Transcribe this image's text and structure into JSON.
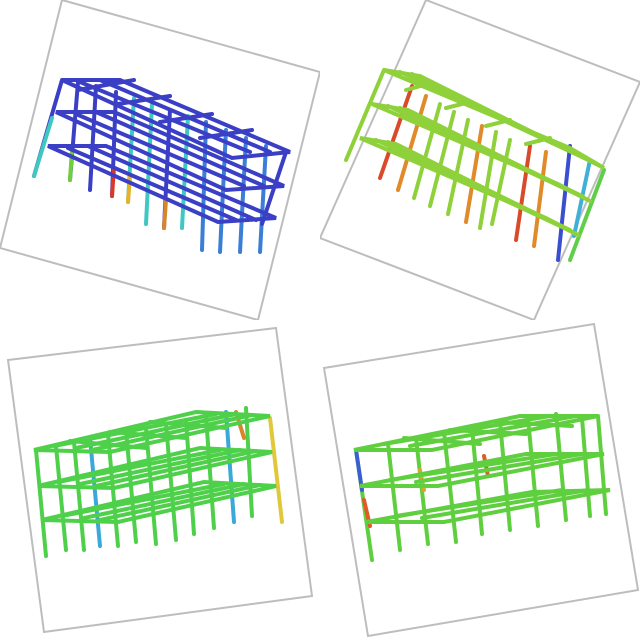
{
  "panels": [
    {
      "id": "tl",
      "base_color": "#3a3fc6",
      "accent_colors": [
        "#3fc7c2",
        "#6ecf3a",
        "#d83a2a",
        "#e8b227",
        "#3a7ed6"
      ]
    },
    {
      "id": "tr",
      "base_color": "#8fd13a",
      "accent_colors": [
        "#d94a2a",
        "#e08a2a",
        "#3a4fd0",
        "#3fb0d8",
        "#5fcf4a"
      ]
    },
    {
      "id": "bl",
      "base_color": "#4fd04a",
      "accent_colors": [
        "#3aa8d8",
        "#e0c83a",
        "#d9862a"
      ]
    },
    {
      "id": "br",
      "base_color": "#5fcf3f",
      "accent_colors": [
        "#3a5fd0",
        "#e05a2a",
        "#d9a82a"
      ]
    }
  ]
}
